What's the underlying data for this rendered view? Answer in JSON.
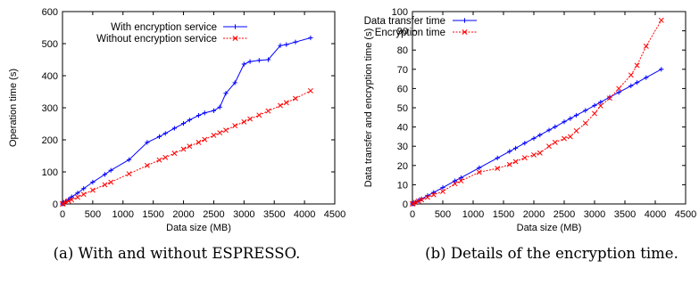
{
  "chart_data": [
    {
      "type": "line",
      "xlabel": "Data size (MB)",
      "ylabel": "Operation time (s)",
      "xlim": [
        0,
        4500
      ],
      "ylim": [
        0,
        600
      ],
      "xticks": [
        0,
        500,
        1000,
        1500,
        2000,
        2500,
        3000,
        3500,
        4000,
        4500
      ],
      "yticks": [
        0,
        100,
        200,
        300,
        400,
        500,
        600
      ],
      "grid": false,
      "legend_position": "top-left",
      "caption": "(a) With and without ESPRESSO.",
      "series": [
        {
          "name": "With encryption service",
          "color": "#0000ff",
          "marker": "plus",
          "x": [
            0,
            10,
            50,
            100,
            150,
            250,
            350,
            500,
            700,
            800,
            1100,
            1400,
            1600,
            1700,
            1850,
            2000,
            2100,
            2250,
            2350,
            2500,
            2600,
            2700,
            2850,
            3000,
            3100,
            3250,
            3400,
            3600,
            3700,
            3850,
            4100
          ],
          "y": [
            0,
            2,
            8,
            14,
            22,
            34,
            48,
            68,
            92,
            105,
            138,
            192,
            210,
            220,
            236,
            251,
            262,
            276,
            284,
            291,
            302,
            345,
            378,
            436,
            444,
            448,
            450,
            494,
            497,
            505,
            518
          ]
        },
        {
          "name": "Without encryption service",
          "color": "#ff0000",
          "marker": "x",
          "x": [
            0,
            10,
            50,
            100,
            150,
            250,
            350,
            500,
            700,
            800,
            1100,
            1400,
            1600,
            1700,
            1850,
            2000,
            2100,
            2250,
            2350,
            2500,
            2600,
            2700,
            2850,
            3000,
            3100,
            3250,
            3400,
            3600,
            3700,
            3850,
            4100
          ],
          "y": [
            0,
            1,
            5,
            9,
            13,
            21,
            30,
            43,
            60,
            68,
            94,
            120,
            137,
            145,
            158,
            171,
            180,
            192,
            201,
            214,
            222,
            230,
            244,
            256,
            265,
            277,
            290,
            307,
            316,
            329,
            353
          ]
        }
      ]
    },
    {
      "type": "line",
      "xlabel": "Data size (MB)",
      "ylabel": "Data transfer and encryption time (s)",
      "xlim": [
        0,
        4500
      ],
      "ylim": [
        0,
        100
      ],
      "xticks": [
        0,
        500,
        1000,
        1500,
        2000,
        2500,
        3000,
        3500,
        4000,
        4500
      ],
      "yticks": [
        0,
        10,
        20,
        30,
        40,
        50,
        60,
        70,
        80,
        90,
        100
      ],
      "grid": false,
      "legend_position": "top-left",
      "caption": "(b) Details of the encryption time.",
      "series": [
        {
          "name": "Data transfer time",
          "color": "#0000ff",
          "marker": "plus",
          "x": [
            0,
            10,
            50,
            100,
            150,
            250,
            350,
            500,
            700,
            800,
            1100,
            1400,
            1600,
            1700,
            1850,
            2000,
            2100,
            2250,
            2350,
            2500,
            2600,
            2700,
            2850,
            3000,
            3100,
            3250,
            3400,
            3600,
            3700,
            3850,
            4100
          ],
          "y": [
            0,
            0.2,
            0.9,
            1.7,
            2.6,
            4.3,
            6.0,
            8.5,
            12.0,
            13.6,
            18.8,
            23.9,
            27.3,
            29.0,
            31.6,
            34.1,
            35.8,
            38.4,
            40.1,
            42.7,
            44.4,
            46.1,
            48.6,
            51.2,
            52.9,
            55.5,
            58.0,
            61.4,
            63.1,
            65.7,
            70.0
          ]
        },
        {
          "name": "Encryption time",
          "color": "#ff0000",
          "marker": "x",
          "x": [
            0,
            10,
            50,
            100,
            150,
            250,
            350,
            500,
            700,
            800,
            1100,
            1400,
            1600,
            1700,
            1850,
            2000,
            2100,
            2250,
            2350,
            2500,
            2600,
            2700,
            2850,
            3000,
            3100,
            3250,
            3400,
            3600,
            3700,
            3850,
            4100
          ],
          "y": [
            0,
            0.2,
            0.8,
            1.5,
            2.2,
            3.5,
            4.8,
            6.5,
            10.5,
            12.0,
            16.5,
            18.5,
            20.5,
            22.0,
            24.0,
            25.5,
            26.5,
            30.0,
            32.0,
            34.0,
            35.0,
            38.0,
            42.0,
            47.0,
            51.0,
            55.0,
            60.0,
            67.0,
            72.0,
            82.0,
            95.5
          ]
        }
      ]
    }
  ]
}
